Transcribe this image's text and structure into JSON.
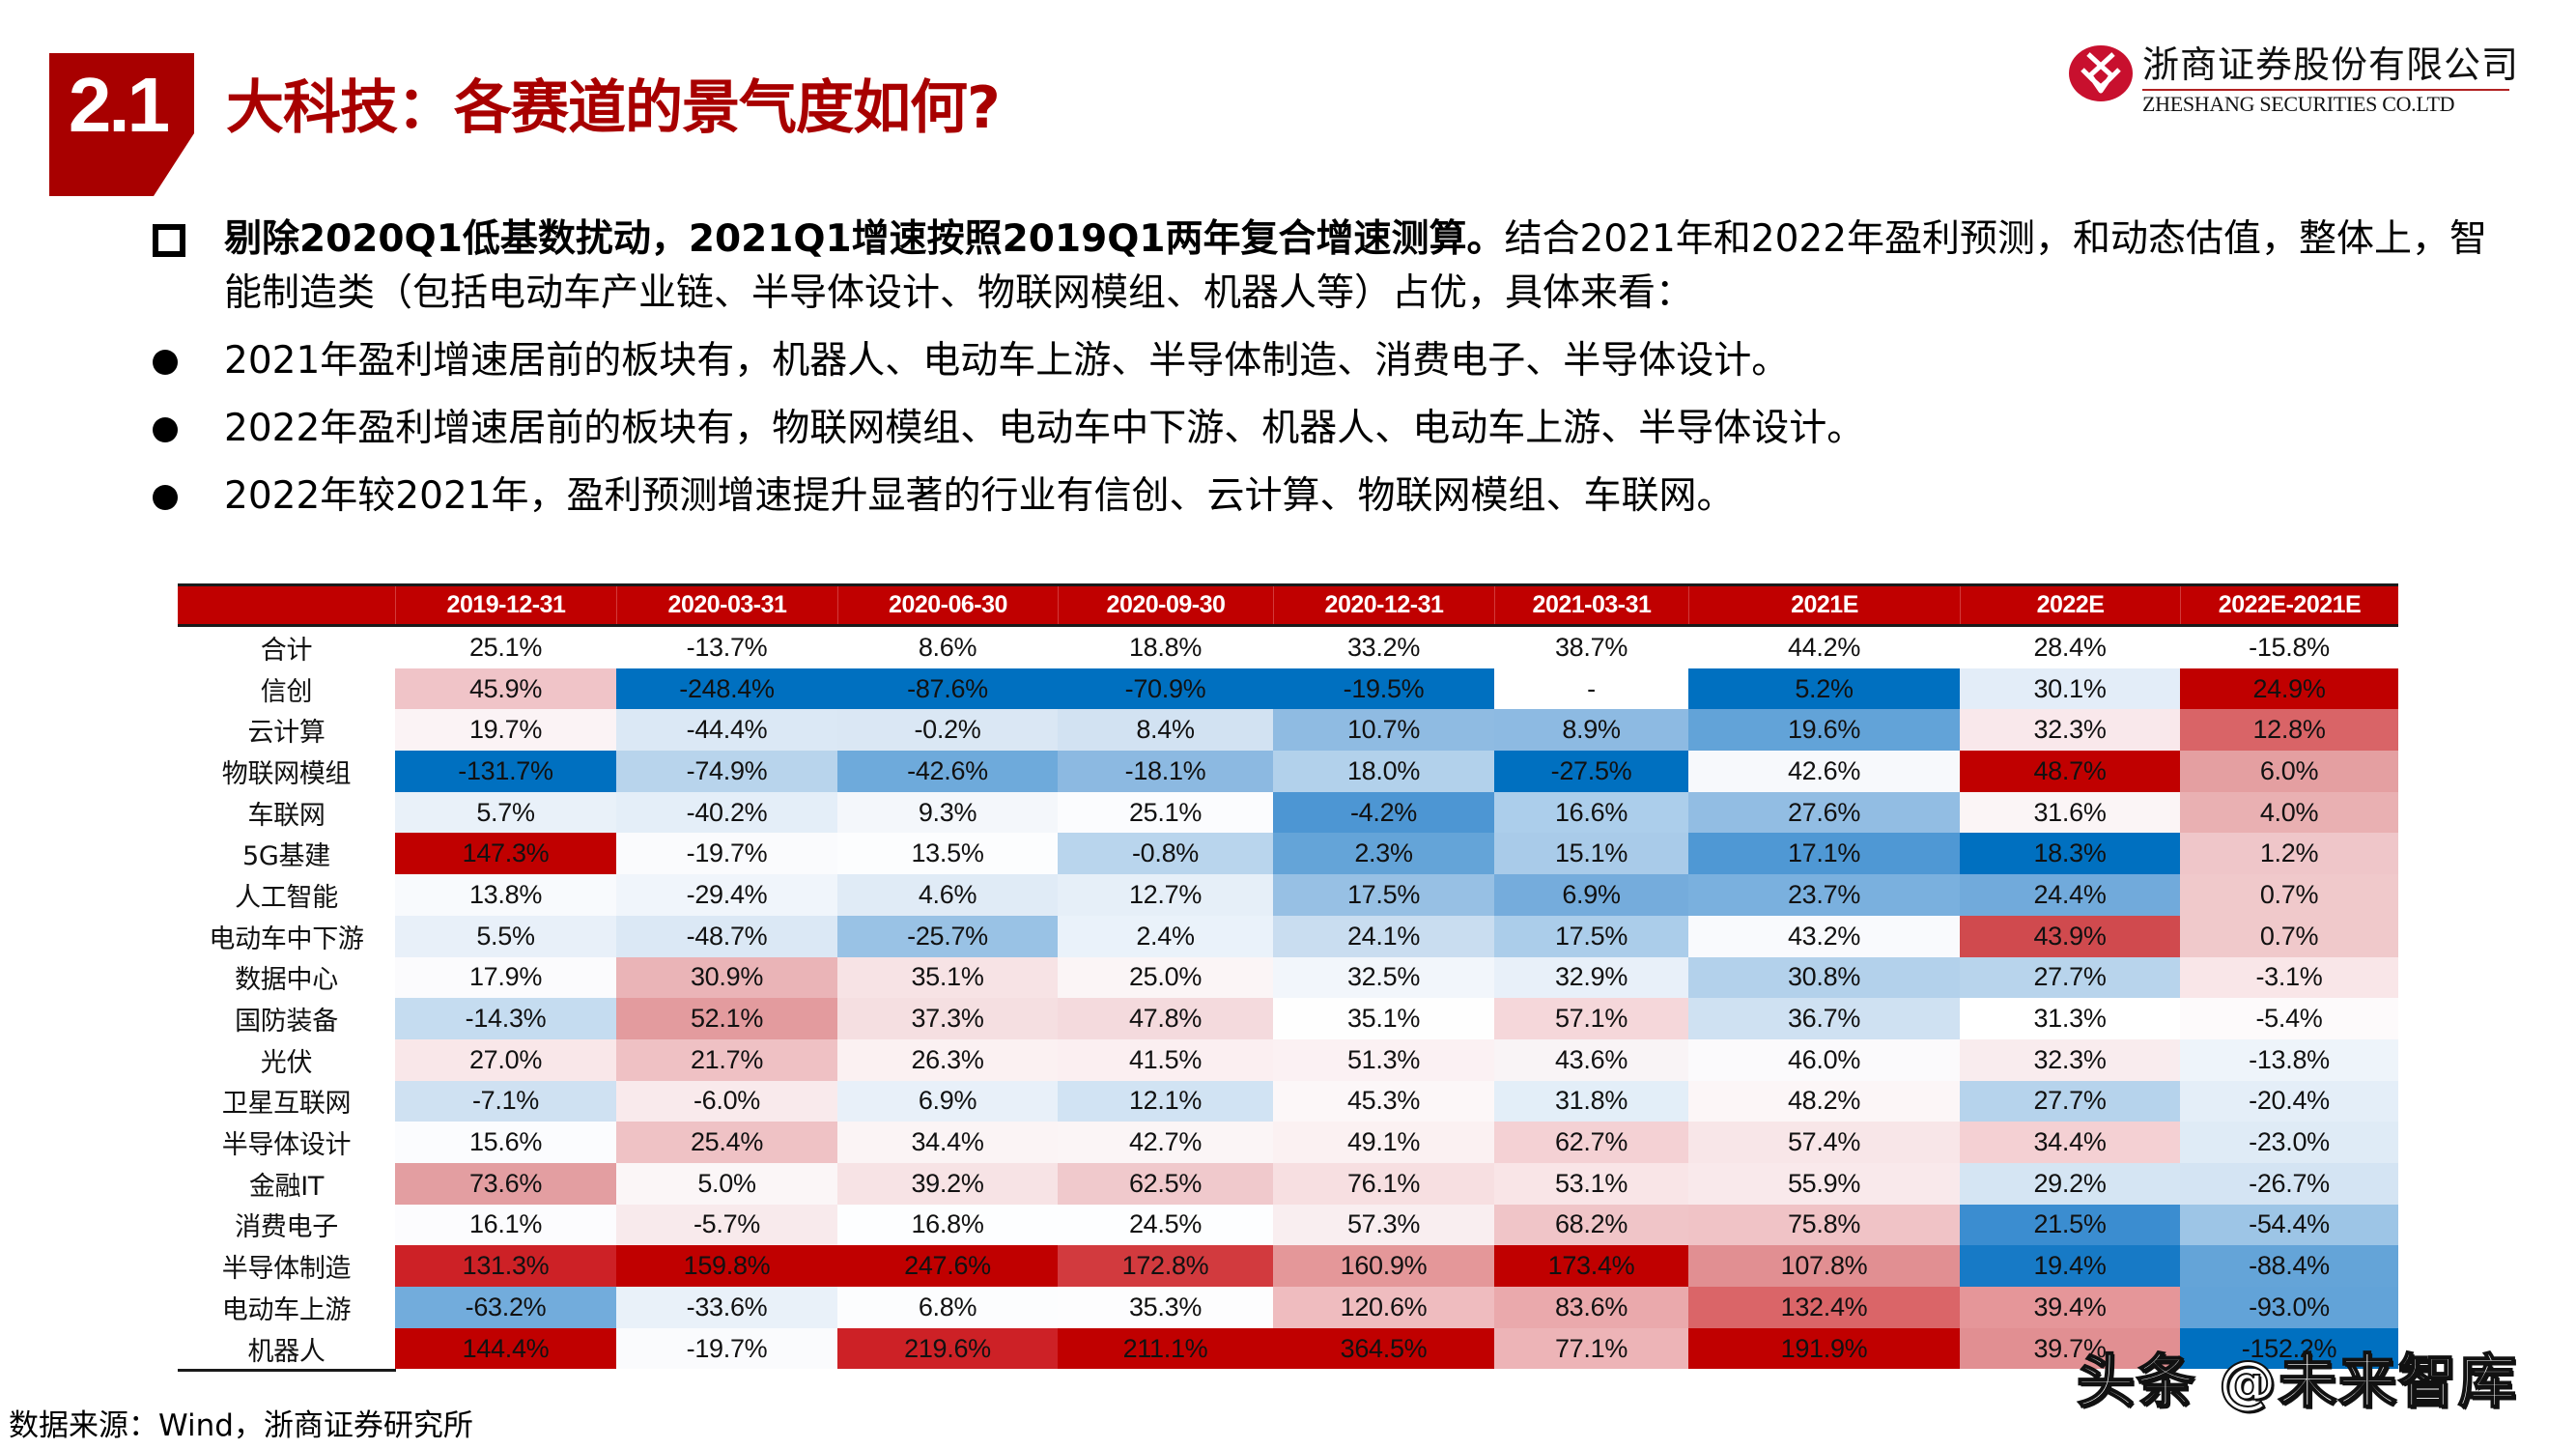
{
  "header": {
    "section_number": "2.1",
    "title": "大科技：各赛道的景气度如何?",
    "badge_color": "#a80000"
  },
  "logo": {
    "name_cn": "浙商证券股份有限公司",
    "name_en": "ZHESHANG SECURITIES CO.LTD",
    "brand_color": "#c8102e"
  },
  "bullets": {
    "lead": {
      "marker": "square",
      "bold_text": "剔除2020Q1低基数扰动，2021Q1增速按照2019Q1两年复合增速测算。",
      "text": "结合2021年和2022年盈利预测，和动态估值，整体上，智能制造类（包括电动车产业链、半导体设计、物联网模组、机器人等）占优，具体来看："
    },
    "items": [
      {
        "marker": "dot",
        "text": "2021年盈利增速居前的板块有，机器人、电动车上游、半导体制造、消费电子、半导体设计。"
      },
      {
        "marker": "dot",
        "text": "2022年盈利增速居前的板块有，物联网模组、电动车中下游、机器人、电动车上游、半导体设计。"
      },
      {
        "marker": "dot",
        "text": "2022年较2021年，盈利预测增速提升显著的行业有信创、云计算、物联网模组、车联网。"
      }
    ]
  },
  "table": {
    "header_color": "#c00000",
    "columns": [
      "",
      "2019-12-31",
      "2020-03-31",
      "2020-06-30",
      "2020-09-30",
      "2020-12-31",
      "2021-03-31",
      "2021E",
      "2022E",
      "2022E-2021E"
    ],
    "rows": [
      {
        "label": "合计",
        "cells": [
          "25.1%",
          "-13.7%",
          "8.6%",
          "18.8%",
          "33.2%",
          "38.7%",
          "44.2%",
          "28.4%",
          "-15.8%"
        ],
        "colors": [
          "#ffffff",
          "#ffffff",
          "#ffffff",
          "#ffffff",
          "#ffffff",
          "#ffffff",
          "#ffffff",
          "#ffffff",
          "#ffffff"
        ]
      },
      {
        "label": "信创",
        "cells": [
          "45.9%",
          "-248.4%",
          "-87.6%",
          "-70.9%",
          "-19.5%",
          "-",
          "5.2%",
          "30.1%",
          "24.9%"
        ],
        "colors": [
          "#f0c4c8",
          "#0070c0",
          "#0070c0",
          "#0070c0",
          "#0070c0",
          "#ffffff",
          "#0070c0",
          "#e3edf8",
          "#c00000"
        ]
      },
      {
        "label": "云计算",
        "cells": [
          "19.7%",
          "-44.4%",
          "-0.2%",
          "8.4%",
          "10.7%",
          "8.9%",
          "19.6%",
          "32.3%",
          "12.8%"
        ],
        "colors": [
          "#fbf3f5",
          "#dbe8f5",
          "#dae7f4",
          "#d2e2f2",
          "#8fbbe2",
          "#8dbae2",
          "#62a3d8",
          "#f9e8eb",
          "#d96467"
        ]
      },
      {
        "label": "物联网模组",
        "cells": [
          "-131.7%",
          "-74.9%",
          "-42.6%",
          "-18.1%",
          "18.0%",
          "-27.5%",
          "42.6%",
          "48.7%",
          "6.0%"
        ],
        "colors": [
          "#0070c0",
          "#b8d4ec",
          "#6eaadb",
          "#8cb9e1",
          "#b2d1eb",
          "#0070c0",
          "#f7f9fc",
          "#c00000",
          "#e49fa1"
        ]
      },
      {
        "label": "车联网",
        "cells": [
          "5.7%",
          "-40.2%",
          "9.3%",
          "25.1%",
          "-4.2%",
          "16.6%",
          "27.6%",
          "31.6%",
          "4.0%"
        ],
        "colors": [
          "#e9f1f9",
          "#e4eef8",
          "#f4f7fb",
          "#fbfcfe",
          "#4d96d3",
          "#acceeb",
          "#92bde3",
          "#fbf5f6",
          "#e9b0b2"
        ]
      },
      {
        "label": "5G基建",
        "cells": [
          "147.3%",
          "-19.7%",
          "13.5%",
          "-0.8%",
          "2.3%",
          "15.1%",
          "17.1%",
          "18.3%",
          "1.2%"
        ],
        "colors": [
          "#c00000",
          "#fafbfd",
          "#fcfdfe",
          "#b9d5ed",
          "#64a4d8",
          "#a9cbe9",
          "#4f98d4",
          "#0070c0",
          "#efc6c9"
        ]
      },
      {
        "label": "人工智能",
        "cells": [
          "13.8%",
          "-29.4%",
          "4.6%",
          "12.7%",
          "17.5%",
          "6.9%",
          "23.7%",
          "24.4%",
          "0.7%"
        ],
        "colors": [
          "#f8fafd",
          "#f0f5fb",
          "#e0ebf6",
          "#e6eff8",
          "#97c0e4",
          "#75acdc",
          "#7ab0de",
          "#71aadb",
          "#f0c9cb"
        ]
      },
      {
        "label": "电动车中下游",
        "cells": [
          "5.5%",
          "-48.7%",
          "-25.7%",
          "2.4%",
          "24.1%",
          "17.5%",
          "43.2%",
          "43.9%",
          "0.7%"
        ],
        "colors": [
          "#e8f0f9",
          "#dbe8f5",
          "#99c2e5",
          "#eaf2fa",
          "#c9ddf0",
          "#abcdea",
          "#f9fafd",
          "#d04a4e",
          "#f0c9cb"
        ]
      },
      {
        "label": "数据中心",
        "cells": [
          "17.9%",
          "30.9%",
          "35.1%",
          "25.0%",
          "32.5%",
          "32.9%",
          "30.8%",
          "27.7%",
          "-3.1%"
        ],
        "colors": [
          "#fbfbfd",
          "#eab4b7",
          "#f7e3e5",
          "#fbf5f6",
          "#f2f6fb",
          "#e8f0f9",
          "#b3d1eb",
          "#b8d4ec",
          "#f9e6e8"
        ]
      },
      {
        "label": "国防装备",
        "cells": [
          "-14.3%",
          "52.1%",
          "37.3%",
          "47.8%",
          "35.1%",
          "57.1%",
          "36.7%",
          "31.3%",
          "-5.4%"
        ],
        "colors": [
          "#c5dcf0",
          "#e39b9e",
          "#f5dfe1",
          "#f4dadd",
          "#fefefe",
          "#f5d7da",
          "#cfe1f2",
          "#ffffff",
          "#fdfafb"
        ]
      },
      {
        "label": "光伏",
        "cells": [
          "27.0%",
          "21.7%",
          "26.3%",
          "41.5%",
          "51.3%",
          "43.6%",
          "46.0%",
          "32.3%",
          "-13.8%"
        ],
        "colors": [
          "#f9e7e9",
          "#efc1c4",
          "#fbf1f2",
          "#fbeff1",
          "#fbf1f3",
          "#f9f4f6",
          "#fbfafc",
          "#f9ecee",
          "#eef4fa"
        ]
      },
      {
        "label": "卫星互联网",
        "cells": [
          "-7.1%",
          "-6.0%",
          "6.9%",
          "12.1%",
          "45.3%",
          "31.8%",
          "48.2%",
          "27.7%",
          "-20.4%"
        ],
        "colors": [
          "#cfe1f2",
          "#f9eaec",
          "#e8f0f9",
          "#d1e3f3",
          "#fcf7f8",
          "#e3eef8",
          "#fcf6f7",
          "#b6d3ec",
          "#e4eef8"
        ]
      },
      {
        "label": "半导体设计",
        "cells": [
          "15.6%",
          "25.4%",
          "34.4%",
          "42.7%",
          "49.1%",
          "62.7%",
          "57.4%",
          "34.4%",
          "-23.0%"
        ],
        "colors": [
          "#fbfcfe",
          "#efc2c5",
          "#fbf4f5",
          "#fbf5f6",
          "#fbf1f2",
          "#f4d1d4",
          "#f8e6e8",
          "#f4d0d3",
          "#dfebf6"
        ]
      },
      {
        "label": "金融IT",
        "cells": [
          "73.6%",
          "5.0%",
          "39.2%",
          "62.5%",
          "76.1%",
          "53.1%",
          "55.9%",
          "29.2%",
          "-26.7%"
        ],
        "colors": [
          "#e39ea1",
          "#fbf6f7",
          "#f7e3e5",
          "#f0c9cc",
          "#f7dfe1",
          "#f9e5e7",
          "#f9e9eb",
          "#d5e5f3",
          "#d4e4f3"
        ]
      },
      {
        "label": "消费电子",
        "cells": [
          "16.1%",
          "-5.7%",
          "16.8%",
          "24.5%",
          "57.3%",
          "68.2%",
          "75.8%",
          "21.5%",
          "-54.4%"
        ],
        "colors": [
          "#fcfcfe",
          "#f8eaec",
          "#fdfeff",
          "#fdfeff",
          "#f9eef0",
          "#f0c5c8",
          "#f0c3c6",
          "#3b8dd0",
          "#9dc5e6"
        ]
      },
      {
        "label": "半导体制造",
        "cells": [
          "131.3%",
          "159.8%",
          "247.6%",
          "172.8%",
          "160.9%",
          "173.4%",
          "107.8%",
          "19.4%",
          "-88.4%"
        ],
        "colors": [
          "#cd2126",
          "#c00000",
          "#c00000",
          "#d23a3e",
          "#e49799",
          "#c00000",
          "#e18f92",
          "#177ac6",
          "#64a4d8"
        ]
      },
      {
        "label": "电动车上游",
        "cells": [
          "-63.2%",
          "-33.6%",
          "6.8%",
          "35.3%",
          "120.6%",
          "83.6%",
          "132.4%",
          "39.4%",
          "-93.0%"
        ],
        "colors": [
          "#72acdc",
          "#e9f1f9",
          "#fcfdfe",
          "#fdfdfe",
          "#efbcbf",
          "#eaa9ac",
          "#da6568",
          "#e59699",
          "#62a3d8"
        ]
      },
      {
        "label": "机器人",
        "cells": [
          "144.4%",
          "-19.7%",
          "219.6%",
          "211.1%",
          "364.5%",
          "77.1%",
          "191.9%",
          "39.7%",
          "-152.2%"
        ],
        "colors": [
          "#c00000",
          "#fafbfd",
          "#cd2126",
          "#c00000",
          "#c00000",
          "#edb4b7",
          "#c00000",
          "#e18f92",
          "#0070c0"
        ]
      }
    ]
  },
  "footer": {
    "source": "数据来源：Wind，浙商证券研究所",
    "watermark": "头条 @未来智库"
  }
}
